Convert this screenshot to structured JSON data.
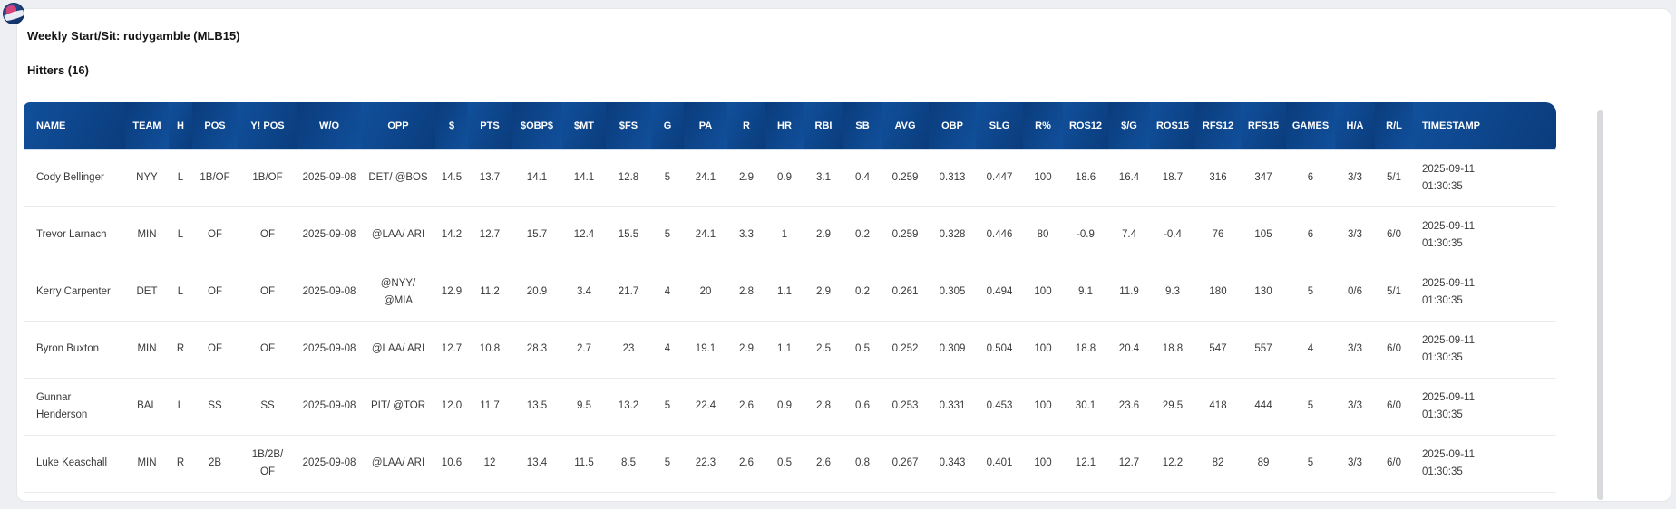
{
  "page": {
    "title": "Weekly Start/Sit: rudygamble (MLB15)",
    "section_title": "Hitters (16)"
  },
  "logo": {
    "name": "site-logo"
  },
  "colors": {
    "header_blue_dark": "#0A3C7C",
    "header_blue_light": "#11509C",
    "row_divider": "#EBEBEE",
    "card_background": "#FFFFFF",
    "page_background": "#EDEFF2",
    "text": "#3A3A3A"
  },
  "table": {
    "columns": [
      "NAME",
      "TEAM",
      "H",
      "POS",
      "Y! POS",
      "W/O",
      "OPP",
      "$",
      "PTS",
      "$OBP$",
      "$MT",
      "$FS",
      "G",
      "PA",
      "R",
      "HR",
      "RBI",
      "SB",
      "AVG",
      "OBP",
      "SLG",
      "R%",
      "ROS12",
      "$/G",
      "ROS15",
      "RFS12",
      "RFS15",
      "GAMES",
      "H/A",
      "R/L",
      "TIMESTAMP"
    ],
    "rows": [
      [
        "Cody Bellinger",
        "NYY",
        "L",
        "1B/OF",
        "1B/OF",
        "2025-09-08",
        "DET/ @BOS",
        "14.5",
        "13.7",
        "14.1",
        "14.1",
        "12.8",
        "5",
        "24.1",
        "2.9",
        "0.9",
        "3.1",
        "0.4",
        "0.259",
        "0.313",
        "0.447",
        "100",
        "18.6",
        "16.4",
        "18.7",
        "316",
        "347",
        "6",
        "3/3",
        "5/1",
        "2025-09-11 01:30:35"
      ],
      [
        "Trevor Larnach",
        "MIN",
        "L",
        "OF",
        "OF",
        "2025-09-08",
        "@LAA/ ARI",
        "14.2",
        "12.7",
        "15.7",
        "12.4",
        "15.5",
        "5",
        "24.1",
        "3.3",
        "1",
        "2.9",
        "0.2",
        "0.259",
        "0.328",
        "0.446",
        "80",
        "-0.9",
        "7.4",
        "-0.4",
        "76",
        "105",
        "6",
        "3/3",
        "6/0",
        "2025-09-11 01:30:35"
      ],
      [
        "Kerry Carpenter",
        "DET",
        "L",
        "OF",
        "OF",
        "2025-09-08",
        "@NYY/ @MIA",
        "12.9",
        "11.2",
        "20.9",
        "3.4",
        "21.7",
        "4",
        "20",
        "2.8",
        "1.1",
        "2.9",
        "0.2",
        "0.261",
        "0.305",
        "0.494",
        "100",
        "9.1",
        "11.9",
        "9.3",
        "180",
        "130",
        "5",
        "0/6",
        "5/1",
        "2025-09-11 01:30:35"
      ],
      [
        "Byron Buxton",
        "MIN",
        "R",
        "OF",
        "OF",
        "2025-09-08",
        "@LAA/ ARI",
        "12.7",
        "10.8",
        "28.3",
        "2.7",
        "23",
        "4",
        "19.1",
        "2.9",
        "1.1",
        "2.5",
        "0.5",
        "0.252",
        "0.309",
        "0.504",
        "100",
        "18.8",
        "20.4",
        "18.8",
        "547",
        "557",
        "4",
        "3/3",
        "6/0",
        "2025-09-11 01:30:35"
      ],
      [
        "Gunnar Henderson",
        "BAL",
        "L",
        "SS",
        "SS",
        "2025-09-08",
        "PIT/ @TOR",
        "12.0",
        "11.7",
        "13.5",
        "9.5",
        "13.2",
        "5",
        "22.4",
        "2.6",
        "0.9",
        "2.8",
        "0.6",
        "0.253",
        "0.331",
        "0.453",
        "100",
        "30.1",
        "23.6",
        "29.5",
        "418",
        "444",
        "5",
        "3/3",
        "6/0",
        "2025-09-11 01:30:35"
      ],
      [
        "Luke Keaschall",
        "MIN",
        "R",
        "2B",
        "1B/2B/OF",
        "2025-09-08",
        "@LAA/ ARI",
        "10.6",
        "12",
        "13.4",
        "11.5",
        "8.5",
        "5",
        "22.3",
        "2.6",
        "0.5",
        "2.6",
        "0.8",
        "0.267",
        "0.343",
        "0.401",
        "100",
        "12.1",
        "12.7",
        "12.2",
        "82",
        "89",
        "5",
        "3/3",
        "6/0",
        "2025-09-11 01:30:35"
      ]
    ]
  }
}
